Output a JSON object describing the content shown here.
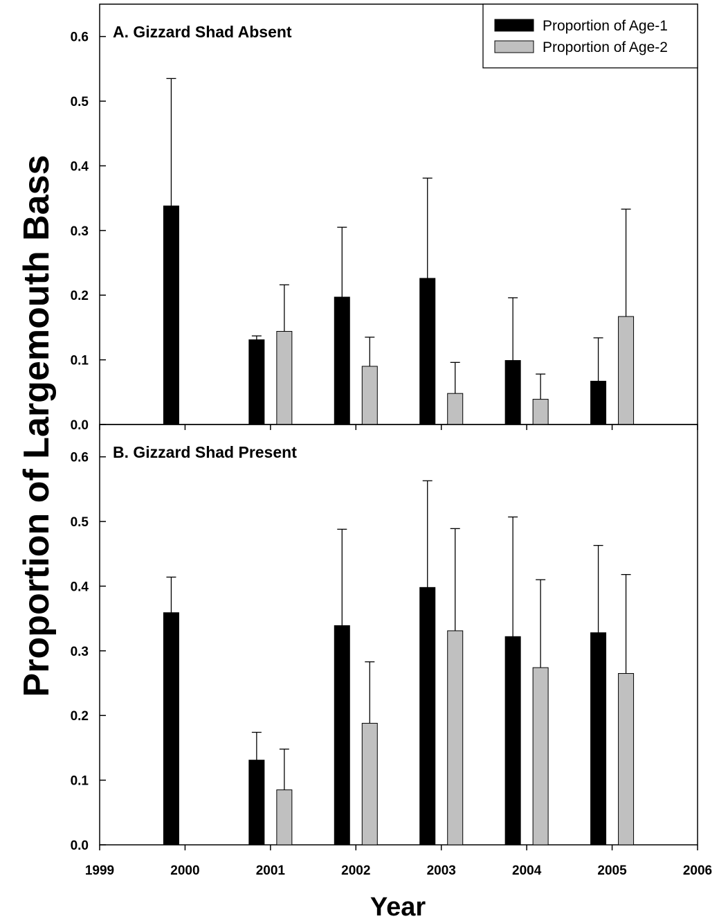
{
  "chart_data": {
    "type": "bar",
    "ylabel": "Proportion of Largemouth Bass",
    "xlabel": "Year",
    "xlim": [
      1999,
      2006
    ],
    "x_ticks": [
      "1999",
      "2000",
      "2001",
      "2002",
      "2003",
      "2004",
      "2005",
      "2006"
    ],
    "ylim": [
      0,
      0.65
    ],
    "y_ticks": [
      "0.0",
      "0.1",
      "0.2",
      "0.3",
      "0.4",
      "0.5",
      "0.6"
    ],
    "grid": false,
    "legend": {
      "placement": "top-right",
      "entries": [
        {
          "name": "Proportion of Age-1",
          "color": "#000000"
        },
        {
          "name": "Proportion of Age-2",
          "color": "#c0c0c0"
        }
      ]
    },
    "panels": [
      {
        "title": "A. Gizzard Shad Absent",
        "categories": [
          2000,
          2001,
          2002,
          2003,
          2004,
          2005
        ],
        "series": [
          {
            "name": "Proportion of Age-1",
            "values": [
              0.338,
              0.131,
              0.197,
              0.226,
              0.099,
              0.067
            ],
            "error_upper": [
              0.535,
              0.137,
              0.305,
              0.381,
              0.196,
              0.134
            ]
          },
          {
            "name": "Proportion of Age-2",
            "values": [
              null,
              0.144,
              0.09,
              0.048,
              0.039,
              0.167
            ],
            "error_upper": [
              null,
              0.216,
              0.135,
              0.096,
              0.078,
              0.333
            ]
          }
        ]
      },
      {
        "title": "B. Gizzard Shad Present",
        "categories": [
          2000,
          2001,
          2002,
          2003,
          2004,
          2005
        ],
        "series": [
          {
            "name": "Proportion of Age-1",
            "values": [
              0.359,
              0.131,
              0.339,
              0.398,
              0.322,
              0.328
            ],
            "error_upper": [
              0.414,
              0.174,
              0.488,
              0.563,
              0.507,
              0.463
            ]
          },
          {
            "name": "Proportion of Age-2",
            "values": [
              null,
              0.085,
              0.188,
              0.331,
              0.274,
              0.265
            ],
            "error_upper": [
              null,
              0.148,
              0.283,
              0.489,
              0.41,
              0.418
            ]
          }
        ]
      }
    ]
  }
}
